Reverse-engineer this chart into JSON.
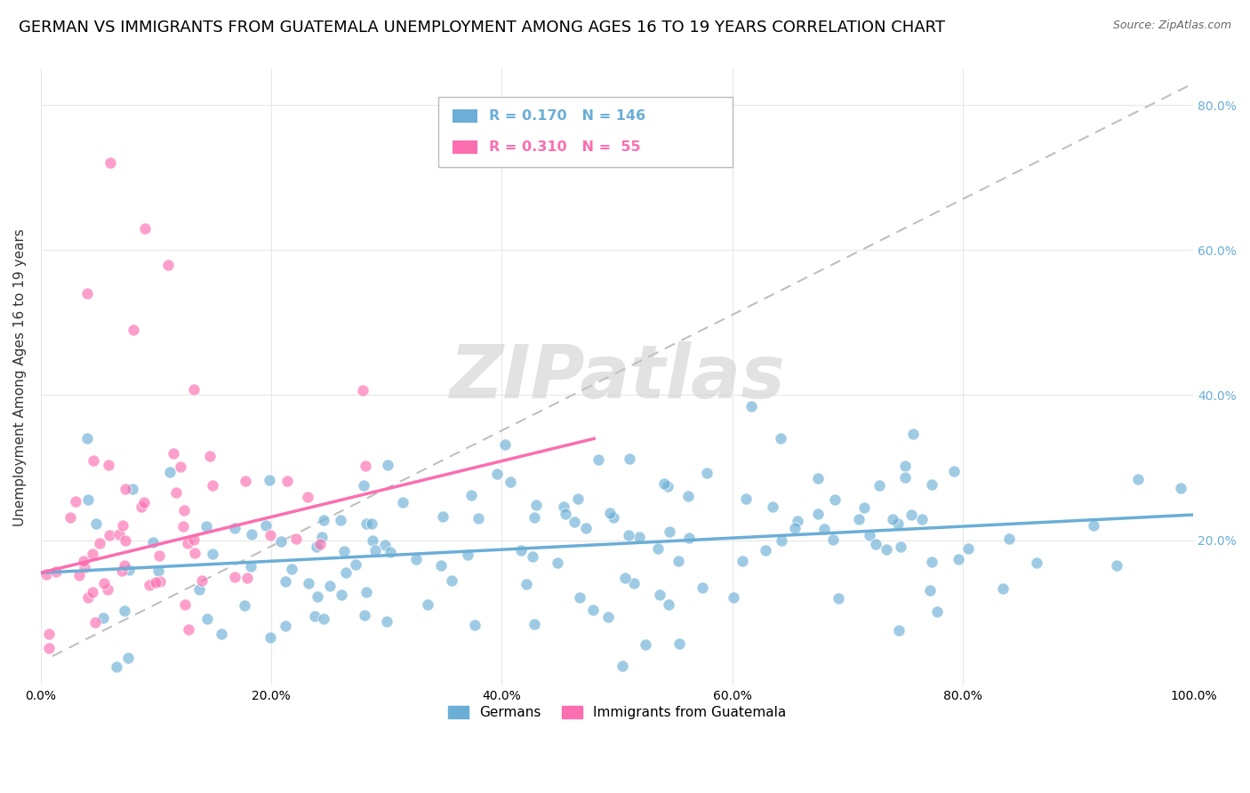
{
  "title": "GERMAN VS IMMIGRANTS FROM GUATEMALA UNEMPLOYMENT AMONG AGES 16 TO 19 YEARS CORRELATION CHART",
  "source": "Source: ZipAtlas.com",
  "ylabel": "Unemployment Among Ages 16 to 19 years",
  "xlim": [
    0.0,
    1.0
  ],
  "ylim": [
    0.0,
    0.85
  ],
  "xticks": [
    0.0,
    0.2,
    0.4,
    0.6,
    0.8,
    1.0
  ],
  "xticklabels": [
    "0.0%",
    "20.0%",
    "40.0%",
    "60.0%",
    "80.0%",
    "100.0%"
  ],
  "yticks": [
    0.0,
    0.2,
    0.4,
    0.6,
    0.8
  ],
  "right_yticks": [
    0.2,
    0.4,
    0.6,
    0.8
  ],
  "right_yticklabels": [
    "20.0%",
    "40.0%",
    "60.0%",
    "80.0%"
  ],
  "german_color": "#6baed6",
  "guatemala_color": "#fb6eb0",
  "german_R": 0.17,
  "german_N": 146,
  "guatemala_R": 0.31,
  "guatemala_N": 55,
  "watermark_text": "ZIPatlas",
  "title_fontsize": 13,
  "axis_fontsize": 11,
  "tick_fontsize": 10,
  "legend_bottom_labels": [
    "Germans",
    "Immigrants from Guatemala"
  ],
  "german_line": [
    [
      0.0,
      1.0
    ],
    [
      0.155,
      0.235
    ]
  ],
  "guatemala_line": [
    [
      0.0,
      0.48
    ],
    [
      0.155,
      0.34
    ]
  ],
  "dash_line": [
    [
      0.01,
      1.0
    ],
    [
      0.04,
      0.83
    ]
  ]
}
